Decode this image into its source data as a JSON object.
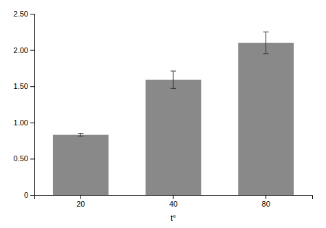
{
  "chart_data": {
    "type": "bar",
    "categories": [
      "20",
      "40",
      "80"
    ],
    "values": [
      0.83,
      1.59,
      2.1
    ],
    "errors": [
      0.02,
      0.12,
      0.15
    ],
    "color": "#898989",
    "xlabel": "t°",
    "ylim": [
      0,
      2.5
    ],
    "yticks": [
      0,
      {
        "value": 0.5,
        "label": "0.50"
      },
      {
        "value": 1.0,
        "label": "1.00"
      },
      {
        "value": 1.5,
        "label": "1.50"
      },
      {
        "value": 2.0,
        "label": "2.00"
      },
      {
        "value": 2.5,
        "label": "2.50"
      }
    ]
  }
}
